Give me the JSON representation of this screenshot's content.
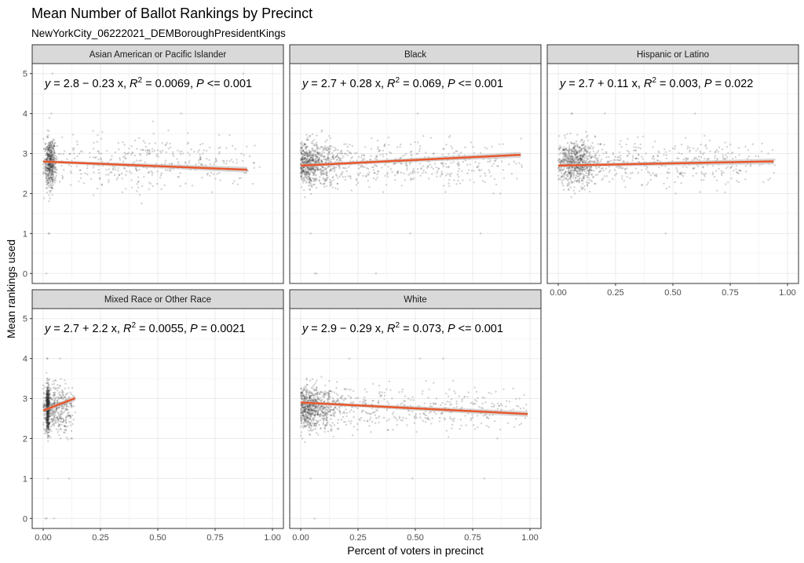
{
  "chart_data": {
    "type": "scatter",
    "title": "Mean Number of Ballot Rankings by Precinct",
    "subtitle": "NewYorkCity_06222021_DEMBoroughPresidentKings",
    "xlabel": "Percent of voters in precinct",
    "ylabel": "Mean rankings used",
    "xlim": [
      0,
      1
    ],
    "ylim": [
      0,
      5
    ],
    "x_ticks": [
      0,
      0.25,
      0.5,
      0.75,
      1
    ],
    "x_tick_labels": [
      "0.00",
      "0.25",
      "0.50",
      "0.75",
      "1.00"
    ],
    "y_ticks": [
      0,
      1,
      2,
      3,
      4,
      5
    ],
    "y_tick_labels": [
      "0",
      "1",
      "2",
      "3",
      "4",
      "5"
    ],
    "colors": {
      "fit_line": "#e8582c",
      "confidence_band": "#bdbdbd",
      "points": "#333333",
      "strip_fill": "#d9d9d9"
    },
    "panels": [
      {
        "label": "Asian American or Pacific Islander",
        "equation": {
          "y": "y",
          "rhs": "= 2.8 − 0.23 x,",
          "r2_label": "R",
          "r2_value": "= 0.0069,",
          "p_label": "P",
          "p_value": "<= 0.001"
        },
        "intercept": 2.8,
        "slope": -0.23,
        "x_range": [
          0,
          0.89
        ],
        "point_cloud": {
          "x_center": 0.03,
          "x_spread": 0.1,
          "x_max": 0.95,
          "y_center": 2.75,
          "y_sd": 0.3,
          "n": 900
        }
      },
      {
        "label": "Black",
        "equation": {
          "y": "y",
          "rhs": "= 2.7 + 0.28 x,",
          "r2_label": "R",
          "r2_value": "= 0.069,",
          "p_label": "P",
          "p_value": "<= 0.001"
        },
        "intercept": 2.7,
        "slope": 0.28,
        "x_range": [
          0,
          0.96
        ],
        "point_cloud": {
          "x_center": 0.02,
          "x_spread": 0.6,
          "x_max": 0.97,
          "y_center": 2.75,
          "y_sd": 0.28,
          "n": 1100
        }
      },
      {
        "label": "Hispanic or Latino",
        "equation": {
          "y": "y",
          "rhs": "= 2.7 + 0.11 x,",
          "r2_label": "R",
          "r2_value": "= 0.003,",
          "p_label": "P",
          "p_value": "= 0.022"
        },
        "intercept": 2.7,
        "slope": 0.11,
        "x_range": [
          0,
          0.94
        ],
        "point_cloud": {
          "x_center": 0.08,
          "x_spread": 0.35,
          "x_max": 0.95,
          "y_center": 2.75,
          "y_sd": 0.28,
          "n": 1100
        }
      },
      {
        "label": "Mixed Race or Other Race",
        "equation": {
          "y": "y",
          "rhs": "= 2.7 + 2.2 x,",
          "r2_label": "R",
          "r2_value": "= 0.0055,",
          "p_label": "P",
          "p_value": "= 0.0021"
        },
        "intercept": 2.7,
        "slope": 2.2,
        "x_range": [
          0,
          0.14
        ],
        "point_cloud": {
          "x_center": 0.02,
          "x_spread": 0.03,
          "x_max": 0.14,
          "y_center": 2.75,
          "y_sd": 0.3,
          "n": 900
        }
      },
      {
        "label": "White",
        "equation": {
          "y": "y",
          "rhs": "= 2.9 − 0.29 x,",
          "r2_label": "R",
          "r2_value": "= 0.073,",
          "p_label": "P",
          "p_value": "<= 0.001"
        },
        "intercept": 2.9,
        "slope": -0.29,
        "x_range": [
          0,
          0.99
        ],
        "point_cloud": {
          "x_center": 0.02,
          "x_spread": 0.6,
          "x_max": 0.99,
          "y_center": 2.75,
          "y_sd": 0.28,
          "n": 1100
        }
      }
    ]
  }
}
